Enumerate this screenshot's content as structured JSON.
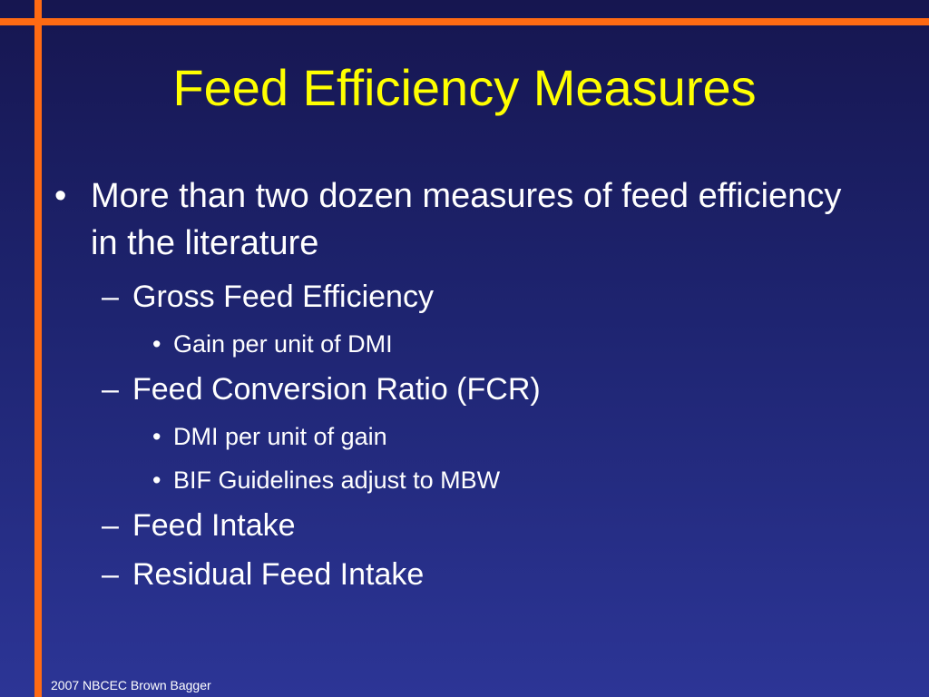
{
  "slide": {
    "title": "Feed Efficiency Measures",
    "bullet_marker": "•",
    "dash_marker": "–",
    "bullets": [
      {
        "text": "More than two dozen measures of feed efficiency in the literature"
      },
      {
        "text": "Gross Feed Efficiency"
      },
      {
        "text": "Gain per unit of DMI"
      },
      {
        "text": "Feed Conversion Ratio (FCR)"
      },
      {
        "text": "DMI per unit of gain"
      },
      {
        "text": "BIF Guidelines adjust to MBW"
      },
      {
        "text": "Feed Intake"
      },
      {
        "text": "Residual Feed Intake"
      }
    ],
    "footer": "2007 NBCEC Brown Bagger"
  },
  "colors": {
    "background_top": "#161650",
    "background_bottom": "#2c3596",
    "accent_lines": "#ff6a13",
    "title": "#ffff00",
    "body_text": "#ffffff"
  }
}
